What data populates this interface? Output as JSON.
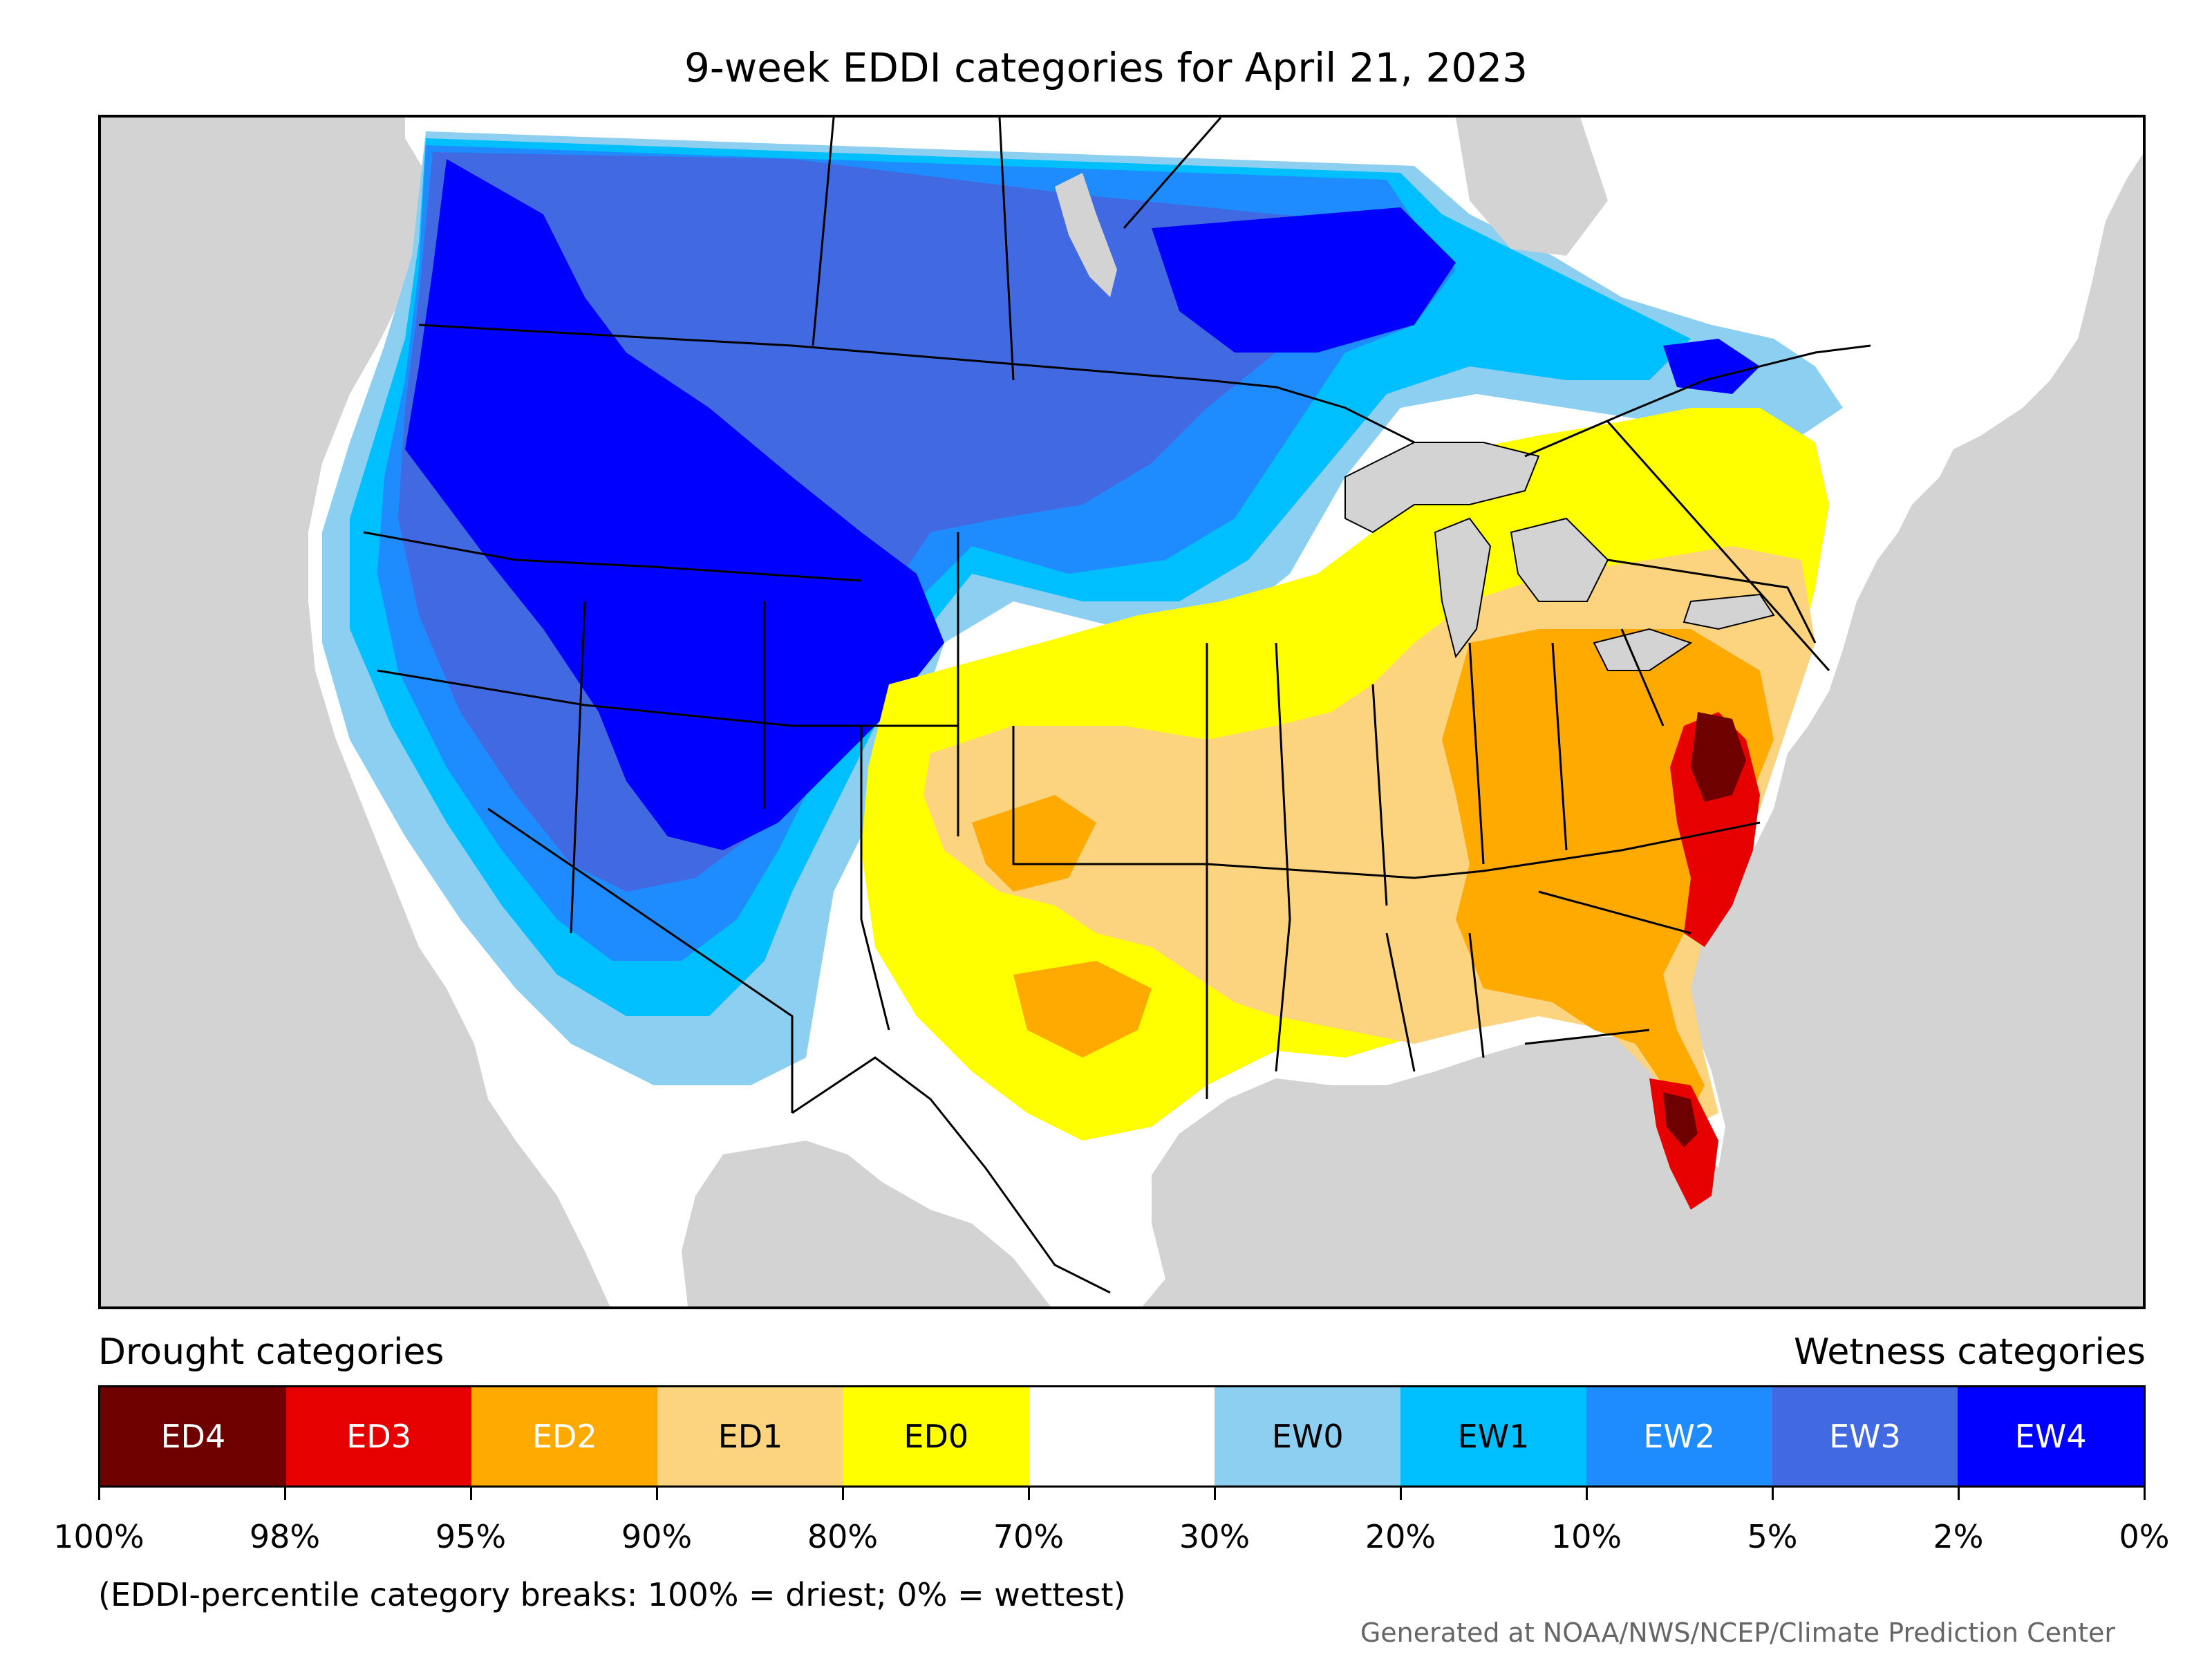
{
  "title": "9-week EDDI categories for April 21, 2023",
  "legend": {
    "drought_label": "Drought categories",
    "wetness_label": "Wetness categories",
    "categories": [
      {
        "name": "ED4",
        "color": "#6e0000",
        "text_color": "#ffffff"
      },
      {
        "name": "ED3",
        "color": "#e60000",
        "text_color": "#ffffff"
      },
      {
        "name": "ED2",
        "color": "#ffaa00",
        "text_color": "#ffffff"
      },
      {
        "name": "ED1",
        "color": "#fcd37f",
        "text_color": "#000000"
      },
      {
        "name": "ED0",
        "color": "#ffff00",
        "text_color": "#000000"
      },
      {
        "name": "",
        "color": "#ffffff",
        "text_color": "#000000"
      },
      {
        "name": "EW0",
        "color": "#8ccff0",
        "text_color": "#000000"
      },
      {
        "name": "EW1",
        "color": "#00bfff",
        "text_color": "#000000"
      },
      {
        "name": "EW2",
        "color": "#1e8cff",
        "text_color": "#ffffff"
      },
      {
        "name": "EW3",
        "color": "#4169e1",
        "text_color": "#ffffff"
      },
      {
        "name": "EW4",
        "color": "#0000ff",
        "text_color": "#ffffff"
      }
    ],
    "breaks": [
      "100%",
      "98%",
      "95%",
      "90%",
      "80%",
      "70%",
      "30%",
      "20%",
      "10%",
      "5%",
      "2%",
      "0%"
    ]
  },
  "footnote": "(EDDI-percentile category breaks: 100% = driest; 0% = wettest)",
  "credit": "Generated at NOAA/NWS/NCEP/Climate Prediction Center",
  "map": {
    "land_color": "#ffffff",
    "water_color": "#d3d3d3"
  }
}
